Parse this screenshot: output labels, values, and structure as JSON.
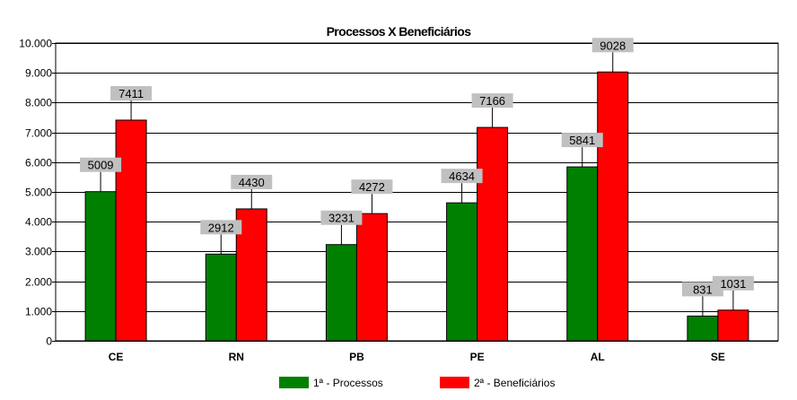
{
  "chart_data": {
    "type": "bar",
    "title": "Processos X Beneficiários",
    "categories": [
      "CE",
      "RN",
      "PB",
      "PE",
      "AL",
      "SE"
    ],
    "series": [
      {
        "name": "1ª - Processos",
        "values": [
          5009,
          2912,
          3231,
          4634,
          5841,
          831
        ],
        "color": "#008000"
      },
      {
        "name": "2ª - Beneficiários",
        "values": [
          7411,
          4430,
          4272,
          7166,
          9028,
          1031
        ],
        "color": "#ff0000"
      }
    ],
    "data_labels": [
      [
        "5009",
        "2912",
        "3231",
        "4634",
        "5841",
        "831"
      ],
      [
        "7411",
        "4430",
        "4272",
        "7166",
        "9028",
        "1031"
      ]
    ],
    "ylim": [
      0,
      10000
    ],
    "yticks": [
      0,
      1000,
      2000,
      3000,
      4000,
      5000,
      6000,
      7000,
      8000,
      9000,
      10000
    ],
    "ytick_labels": [
      "0",
      "1.000",
      "2.000",
      "3.000",
      "4.000",
      "5.000",
      "6.000",
      "7.000",
      "8.000",
      "9.000",
      "10.000"
    ],
    "xlabel": "",
    "ylabel": "",
    "grid": true,
    "legend_position": "bottom",
    "label_box_color": "#c0c0c0"
  }
}
